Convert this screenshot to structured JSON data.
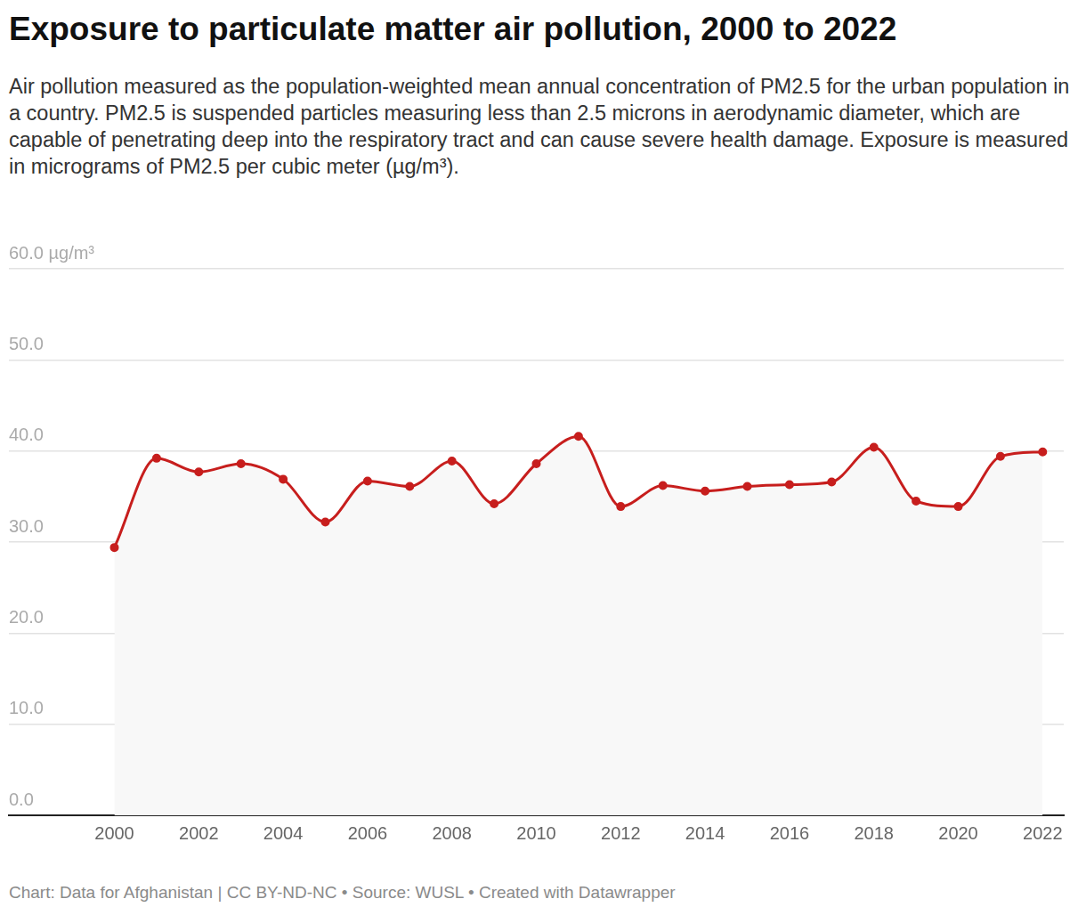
{
  "chart_data": {
    "type": "line",
    "title": "Exposure to particulate matter air pollution, 2000 to 2022",
    "subtitle": "Air pollution measured as the population-weighted mean annual concentration of PM2.5 for the urban population in a country. PM2.5 is suspended particles measuring less than 2.5 microns in aerodynamic diameter, which are capable of penetrating deep into the respiratory tract and can cause severe health damage. Exposure is measured in micrograms of PM2.5 per cubic meter (µg/m³).",
    "footer": "Chart: Data for Afghanistan | CC BY-ND-NC  • Source: WUSL • Created with Datawrapper",
    "x": [
      2000,
      2001,
      2002,
      2003,
      2004,
      2005,
      2006,
      2007,
      2008,
      2009,
      2010,
      2011,
      2012,
      2013,
      2014,
      2015,
      2016,
      2017,
      2018,
      2019,
      2020,
      2021,
      2022
    ],
    "values": [
      29.4,
      39.2,
      37.7,
      38.6,
      36.9,
      32.2,
      36.7,
      36.1,
      38.9,
      34.2,
      38.6,
      41.6,
      33.9,
      36.2,
      35.6,
      36.1,
      36.3,
      36.6,
      40.4,
      34.5,
      33.9,
      39.4,
      39.9
    ],
    "color": "#c71e1d",
    "marker": "circle",
    "xlim": [
      1997.5,
      2022.5
    ],
    "xticks": [
      2000,
      2002,
      2004,
      2006,
      2008,
      2010,
      2012,
      2014,
      2016,
      2018,
      2020,
      2022
    ],
    "ylim": [
      0,
      60
    ],
    "yticks": [
      {
        "value": 0,
        "label": "0.0"
      },
      {
        "value": 10,
        "label": "10.0"
      },
      {
        "value": 20,
        "label": "20.0"
      },
      {
        "value": 30,
        "label": "30.0"
      },
      {
        "value": 40,
        "label": "40.0"
      },
      {
        "value": 50,
        "label": "50.0"
      },
      {
        "value": 60,
        "label": "60.0 µg/m³"
      }
    ],
    "grid": true
  }
}
